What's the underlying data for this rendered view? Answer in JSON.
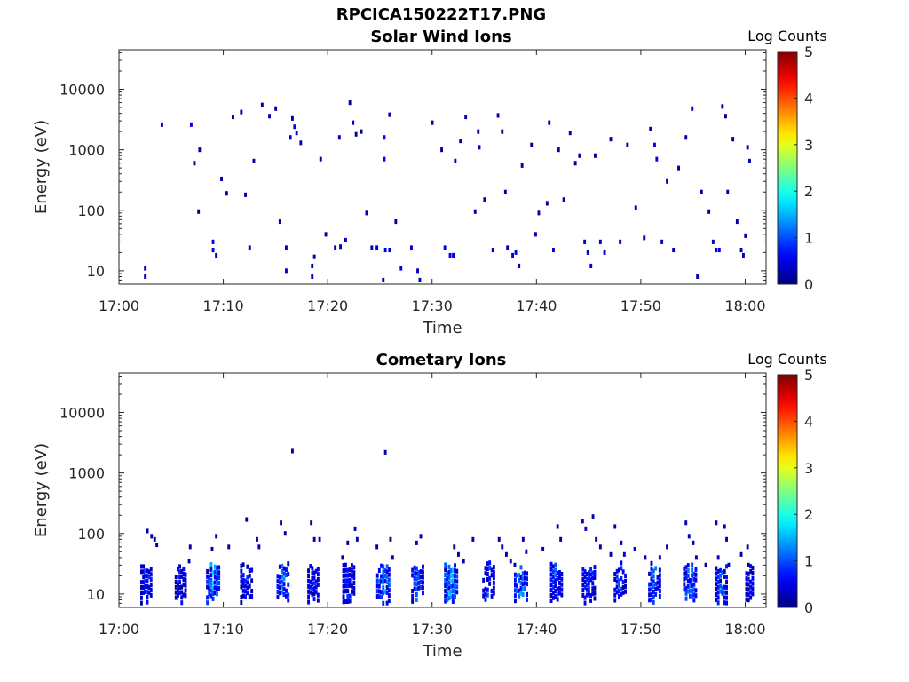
{
  "figure": {
    "filename": "RPCICA150222T17.PNG"
  },
  "chart_data": [
    {
      "type": "heatmap",
      "title": "Solar Wind Ions",
      "xlabel": "Time",
      "ylabel": "Energy (eV)",
      "yscale": "log",
      "ylim": [
        6,
        45000
      ],
      "yticks": [
        10,
        100,
        1000,
        10000
      ],
      "yticklabels": [
        "10",
        "100",
        "1000",
        "10000"
      ],
      "xlim": [
        "17:00",
        "18:02"
      ],
      "xticklabels": [
        "17:00",
        "17:10",
        "17:20",
        "17:30",
        "17:40",
        "17:50",
        "18:00"
      ],
      "colorbar": {
        "label": "Log Counts",
        "min": 0,
        "max": 5,
        "ticks": [
          "0",
          "1",
          "2",
          "3",
          "4",
          "5"
        ]
      },
      "grid": false,
      "cells": [
        [
          2.4,
          8,
          1,
          0.3
        ],
        [
          2.4,
          11,
          1,
          0.3
        ],
        [
          4.0,
          2600,
          1,
          0.5
        ],
        [
          6.8,
          2600,
          1,
          0.5
        ],
        [
          7.6,
          1000,
          1,
          0.2
        ],
        [
          7.1,
          600,
          1,
          0.2
        ],
        [
          7.5,
          95,
          1,
          0.2
        ],
        [
          8.9,
          30,
          1,
          0.5
        ],
        [
          8.9,
          22,
          1,
          0.5
        ],
        [
          9.2,
          18,
          1,
          0.3
        ],
        [
          9.7,
          330,
          1,
          0.2
        ],
        [
          10.2,
          190,
          1,
          0.2
        ],
        [
          10.8,
          3500,
          1,
          0.2
        ],
        [
          11.6,
          4200,
          1,
          0.2
        ],
        [
          12.0,
          180,
          1,
          0.2
        ],
        [
          12.4,
          24,
          1,
          0.3
        ],
        [
          12.8,
          650,
          1,
          0.2
        ],
        [
          13.6,
          5500,
          1,
          0.2
        ],
        [
          14.3,
          3600,
          1,
          0.3
        ],
        [
          14.9,
          4800,
          1,
          0.2
        ],
        [
          15.3,
          65,
          1,
          0.2
        ],
        [
          15.9,
          10,
          1,
          0.4
        ],
        [
          15.9,
          24,
          1,
          0.4
        ],
        [
          16.3,
          1600,
          1,
          0.3
        ],
        [
          16.7,
          2400,
          1,
          0.6
        ],
        [
          16.9,
          1900,
          1,
          0.4
        ],
        [
          16.5,
          3300,
          1,
          0.2
        ],
        [
          17.3,
          1300,
          1,
          0.2
        ],
        [
          18.4,
          8,
          1,
          0.3
        ],
        [
          18.4,
          12,
          1,
          0.3
        ],
        [
          18.6,
          17,
          1,
          0.3
        ],
        [
          19.7,
          40,
          1,
          0.2
        ],
        [
          19.2,
          700,
          1,
          0.2
        ],
        [
          20.6,
          24,
          1,
          0.3
        ],
        [
          21.1,
          25,
          1,
          0.3
        ],
        [
          21.6,
          32,
          1,
          0.4
        ],
        [
          21.0,
          1600,
          1,
          0.3
        ],
        [
          22.0,
          6000,
          1,
          0.2
        ],
        [
          22.3,
          2800,
          1,
          0.4
        ],
        [
          22.6,
          1800,
          1,
          0.2
        ],
        [
          23.1,
          2000,
          1,
          0.2
        ],
        [
          23.6,
          90,
          1,
          0.2
        ],
        [
          24.1,
          24,
          1,
          0.3
        ],
        [
          24.6,
          24,
          1,
          0.3
        ],
        [
          25.3,
          1600,
          1,
          0.6
        ],
        [
          25.3,
          700,
          1,
          0.6
        ],
        [
          25.4,
          22,
          1,
          0.5
        ],
        [
          25.8,
          22,
          1,
          0.5
        ],
        [
          25.2,
          7,
          1,
          0.3
        ],
        [
          25.8,
          3800,
          1,
          0.2
        ],
        [
          26.4,
          65,
          1,
          0.2
        ],
        [
          26.9,
          11,
          1,
          0.5
        ],
        [
          27.9,
          24,
          1,
          0.3
        ],
        [
          28.5,
          10,
          1,
          0.3
        ],
        [
          28.7,
          7,
          1,
          0.2
        ],
        [
          29.9,
          2800,
          1,
          0.2
        ],
        [
          30.8,
          1000,
          1,
          0.2
        ],
        [
          31.1,
          24,
          1,
          0.5
        ],
        [
          31.6,
          18,
          1,
          0.5
        ],
        [
          31.9,
          18,
          1,
          0.5
        ],
        [
          32.1,
          650,
          1,
          0.3
        ],
        [
          32.6,
          1400,
          1,
          0.2
        ],
        [
          33.1,
          3500,
          1,
          0.3
        ],
        [
          34.0,
          95,
          1,
          0.2
        ],
        [
          34.3,
          2000,
          1,
          0.3
        ],
        [
          34.4,
          1100,
          1,
          0.4
        ],
        [
          34.9,
          150,
          1,
          0.3
        ],
        [
          35.7,
          22,
          1,
          0.3
        ],
        [
          36.2,
          3700,
          1,
          0.3
        ],
        [
          36.6,
          2000,
          1,
          0.3
        ],
        [
          36.9,
          200,
          1,
          0.2
        ],
        [
          37.1,
          24,
          1,
          0.3
        ],
        [
          37.6,
          18,
          1,
          0.5
        ],
        [
          37.9,
          20,
          1,
          0.5
        ],
        [
          38.2,
          12,
          1,
          0.3
        ],
        [
          38.5,
          550,
          1,
          0.2
        ],
        [
          39.4,
          1200,
          1,
          0.2
        ],
        [
          39.8,
          40,
          1,
          0.2
        ],
        [
          40.1,
          90,
          1,
          0.2
        ],
        [
          40.9,
          130,
          1,
          0.2
        ],
        [
          41.1,
          2800,
          1,
          0.2
        ],
        [
          41.5,
          22,
          1,
          0.4
        ],
        [
          42.0,
          1000,
          1,
          0.2
        ],
        [
          42.5,
          150,
          1,
          0.2
        ],
        [
          43.1,
          1900,
          1,
          0.2
        ],
        [
          43.6,
          600,
          1,
          0.2
        ],
        [
          44.0,
          800,
          1,
          0.2
        ],
        [
          44.5,
          30,
          1,
          0.3
        ],
        [
          44.8,
          20,
          1,
          0.3
        ],
        [
          45.1,
          12,
          1,
          0.5
        ],
        [
          45.5,
          800,
          1,
          0.2
        ],
        [
          46.0,
          30,
          1,
          0.2
        ],
        [
          46.4,
          20,
          1,
          0.3
        ],
        [
          47.0,
          1500,
          1,
          0.2
        ],
        [
          47.9,
          30,
          1,
          0.3
        ],
        [
          48.6,
          1200,
          1,
          0.2
        ],
        [
          49.4,
          110,
          1,
          0.2
        ],
        [
          50.2,
          35,
          1,
          0.3
        ],
        [
          50.8,
          2200,
          1,
          0.3
        ],
        [
          51.2,
          1200,
          1,
          0.5
        ],
        [
          51.4,
          700,
          1,
          0.5
        ],
        [
          51.9,
          30,
          1,
          0.3
        ],
        [
          52.4,
          300,
          1,
          0.2
        ],
        [
          53.0,
          22,
          1,
          0.3
        ],
        [
          53.5,
          500,
          1,
          0.2
        ],
        [
          54.2,
          1600,
          1,
          0.2
        ],
        [
          54.8,
          4800,
          1,
          0.2
        ],
        [
          55.3,
          8,
          1,
          0.3
        ],
        [
          55.7,
          200,
          1,
          0.2
        ],
        [
          56.4,
          95,
          1,
          0.2
        ],
        [
          56.8,
          30,
          1,
          0.3
        ],
        [
          57.1,
          22,
          1,
          0.5
        ],
        [
          57.4,
          22,
          1,
          0.5
        ],
        [
          57.7,
          5200,
          1,
          0.2
        ],
        [
          58.0,
          3600,
          1,
          0.2
        ],
        [
          58.2,
          200,
          1,
          0.2
        ],
        [
          58.7,
          1500,
          1,
          0.2
        ],
        [
          59.1,
          65,
          1,
          0.2
        ],
        [
          59.5,
          22,
          1,
          0.3
        ],
        [
          59.9,
          38,
          1,
          0.3
        ],
        [
          60.1,
          1100,
          1,
          0.3
        ],
        [
          60.3,
          650,
          1,
          0.3
        ],
        [
          59.7,
          18,
          1,
          0.4
        ]
      ]
    },
    {
      "type": "heatmap",
      "title": "Cometary Ions",
      "xlabel": "Time",
      "ylabel": "Energy (eV)",
      "yscale": "log",
      "ylim": [
        6,
        45000
      ],
      "yticks": [
        10,
        100,
        1000,
        10000
      ],
      "yticklabels": [
        "10",
        "100",
        "1000",
        "10000"
      ],
      "xlim": [
        "17:00",
        "18:02"
      ],
      "xticklabels": [
        "17:00",
        "17:10",
        "17:20",
        "17:30",
        "17:40",
        "17:50",
        "18:00"
      ],
      "colorbar": {
        "label": "Log Counts",
        "min": 0,
        "max": 5,
        "ticks": [
          "0",
          "1",
          "2",
          "3",
          "4",
          "5"
        ]
      },
      "grid": false,
      "bursts": [
        {
          "t": 2.5,
          "e": 16,
          "w": 1.1,
          "peak": 1.2
        },
        {
          "t": 5.8,
          "e": 16,
          "w": 1.1,
          "peak": 0.8
        },
        {
          "t": 8.9,
          "e": 14,
          "w": 1.3,
          "peak": 1.8
        },
        {
          "t": 12.1,
          "e": 16,
          "w": 1.2,
          "peak": 1.0
        },
        {
          "t": 15.6,
          "e": 14,
          "w": 1.2,
          "peak": 1.5
        },
        {
          "t": 18.5,
          "e": 16,
          "w": 1.1,
          "peak": 1.0
        },
        {
          "t": 21.9,
          "e": 16,
          "w": 1.2,
          "peak": 1.1
        },
        {
          "t": 25.2,
          "e": 14,
          "w": 1.3,
          "peak": 1.9
        },
        {
          "t": 28.5,
          "e": 16,
          "w": 1.2,
          "peak": 1.4
        },
        {
          "t": 31.7,
          "e": 14,
          "w": 1.3,
          "peak": 2.0
        },
        {
          "t": 35.3,
          "e": 16,
          "w": 1.2,
          "peak": 1.1
        },
        {
          "t": 38.4,
          "e": 14,
          "w": 1.3,
          "peak": 1.7
        },
        {
          "t": 41.8,
          "e": 16,
          "w": 1.2,
          "peak": 1.3
        },
        {
          "t": 44.9,
          "e": 16,
          "w": 1.3,
          "peak": 1.2
        },
        {
          "t": 47.9,
          "e": 16,
          "w": 1.2,
          "peak": 1.2
        },
        {
          "t": 51.2,
          "e": 16,
          "w": 1.2,
          "peak": 1.4
        },
        {
          "t": 54.6,
          "e": 16,
          "w": 1.3,
          "peak": 1.5
        },
        {
          "t": 57.6,
          "e": 16,
          "w": 1.2,
          "peak": 1.3
        },
        {
          "t": 60.3,
          "e": 18,
          "w": 0.8,
          "peak": 0.9
        }
      ],
      "cells": [
        [
          2.6,
          110,
          1,
          0.2
        ],
        [
          3.0,
          90,
          1,
          0.2
        ],
        [
          3.3,
          80,
          1,
          0.3
        ],
        [
          3.5,
          65,
          1,
          0.2
        ],
        [
          6.7,
          60,
          1,
          0.2
        ],
        [
          6.6,
          35,
          1,
          0.2
        ],
        [
          8.8,
          55,
          1,
          0.2
        ],
        [
          9.2,
          90,
          1,
          0.2
        ],
        [
          10.4,
          60,
          1,
          0.2
        ],
        [
          12.1,
          170,
          1,
          0.2
        ],
        [
          13.1,
          80,
          1,
          0.3
        ],
        [
          13.3,
          60,
          1,
          0.3
        ],
        [
          15.4,
          150,
          1,
          0.3
        ],
        [
          15.8,
          100,
          1,
          0.2
        ],
        [
          16.5,
          2300,
          1,
          0.3
        ],
        [
          18.3,
          150,
          1,
          0.2
        ],
        [
          18.6,
          80,
          1,
          0.3
        ],
        [
          19.1,
          80,
          1,
          0.3
        ],
        [
          21.3,
          40,
          1,
          0.2
        ],
        [
          21.8,
          70,
          1,
          0.2
        ],
        [
          22.5,
          120,
          1,
          0.2
        ],
        [
          22.7,
          80,
          1,
          0.3
        ],
        [
          25.4,
          2200,
          1,
          0.3
        ],
        [
          24.6,
          60,
          1,
          0.2
        ],
        [
          25.9,
          80,
          1,
          0.2
        ],
        [
          26.1,
          40,
          1,
          0.3
        ],
        [
          28.4,
          70,
          1,
          0.3
        ],
        [
          28.8,
          90,
          1,
          0.2
        ],
        [
          32.4,
          45,
          1,
          0.3
        ],
        [
          32.0,
          60,
          1,
          0.2
        ],
        [
          32.9,
          35,
          1,
          0.2
        ],
        [
          33.8,
          80,
          1,
          0.2
        ],
        [
          36.3,
          80,
          1,
          0.2
        ],
        [
          36.6,
          60,
          1,
          0.3
        ],
        [
          37.0,
          45,
          1,
          0.3
        ],
        [
          37.4,
          35,
          1,
          0.3
        ],
        [
          37.8,
          30,
          1,
          0.2
        ],
        [
          38.6,
          80,
          1,
          0.3
        ],
        [
          38.9,
          50,
          1,
          0.3
        ],
        [
          40.5,
          55,
          1,
          0.2
        ],
        [
          41.9,
          130,
          1,
          0.2
        ],
        [
          42.2,
          80,
          1,
          0.2
        ],
        [
          44.3,
          160,
          1,
          0.4
        ],
        [
          44.6,
          120,
          1,
          0.4
        ],
        [
          45.3,
          190,
          1,
          0.3
        ],
        [
          45.6,
          80,
          1,
          0.3
        ],
        [
          46.0,
          60,
          1,
          0.3
        ],
        [
          47.0,
          45,
          1,
          0.3
        ],
        [
          47.4,
          130,
          1,
          0.2
        ],
        [
          48.0,
          70,
          1,
          0.4
        ],
        [
          48.3,
          45,
          1,
          0.4
        ],
        [
          49.3,
          55,
          1,
          0.3
        ],
        [
          50.3,
          40,
          1,
          0.3
        ],
        [
          51.7,
          40,
          1,
          0.3
        ],
        [
          52.4,
          60,
          1,
          0.2
        ],
        [
          54.2,
          150,
          1,
          0.3
        ],
        [
          54.5,
          90,
          1,
          0.3
        ],
        [
          54.9,
          70,
          1,
          0.3
        ],
        [
          55.2,
          40,
          1,
          0.3
        ],
        [
          56.1,
          30,
          1,
          0.2
        ],
        [
          57.1,
          150,
          1,
          0.3
        ],
        [
          57.3,
          40,
          1,
          0.3
        ],
        [
          57.9,
          130,
          1,
          0.3
        ],
        [
          58.1,
          80,
          1,
          0.3
        ],
        [
          58.3,
          30,
          1,
          0.3
        ],
        [
          59.5,
          45,
          1,
          0.2
        ],
        [
          60.1,
          60,
          1,
          0.2
        ],
        [
          60.2,
          30,
          1,
          0.3
        ]
      ]
    }
  ]
}
